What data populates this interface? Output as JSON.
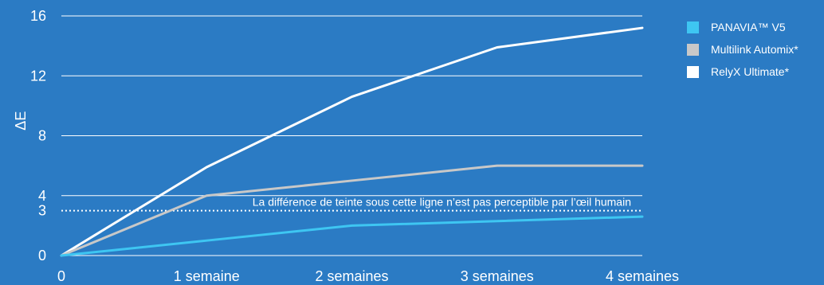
{
  "chart_data": {
    "type": "line",
    "x": [
      0,
      1,
      2,
      3,
      4
    ],
    "categories": [
      "0",
      "1 semaine",
      "2 semaines",
      "3 semaines",
      "4 semaines"
    ],
    "ylabel": "ΔE",
    "ylim": [
      0,
      16
    ],
    "yticks": [
      0,
      3,
      4,
      8,
      12,
      16
    ],
    "series": [
      {
        "name": "PANAVIA™ V5",
        "color": "#3ec6f2",
        "values": [
          0,
          1,
          2,
          2.3,
          2.6
        ]
      },
      {
        "name": "Multilink Automix*",
        "color": "#c8c8c8",
        "values": [
          0,
          4,
          5,
          6,
          6
        ]
      },
      {
        "name": "RelyX Ultimate*",
        "color": "#ffffff",
        "values": [
          0,
          5.9,
          10.6,
          13.9,
          15.2
        ]
      }
    ],
    "threshold": {
      "value": 3,
      "label": "La différence de teinte sous cette ligne n’est pas perceptible par l’œil humain"
    },
    "legend_position": "top-right",
    "grid": true
  }
}
